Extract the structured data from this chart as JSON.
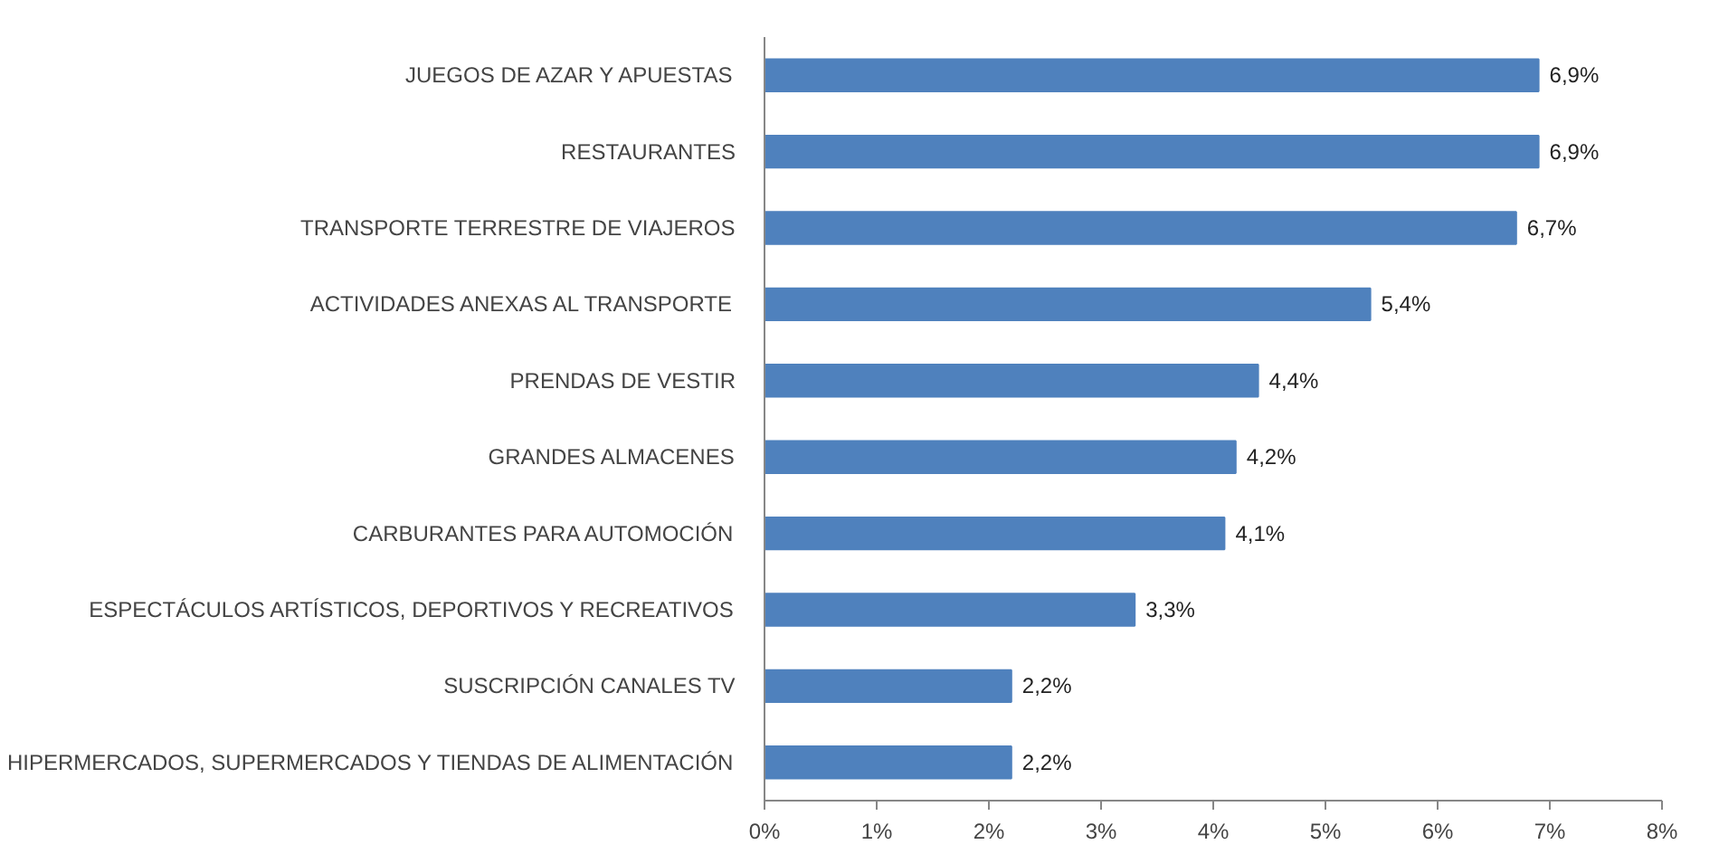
{
  "chart_data": {
    "type": "bar",
    "orientation": "horizontal",
    "categories": [
      "JUEGOS DE AZAR Y APUESTAS",
      "RESTAURANTES",
      "TRANSPORTE TERRESTRE DE VIAJEROS",
      "ACTIVIDADES ANEXAS AL TRANSPORTE",
      "PRENDAS DE VESTIR",
      "GRANDES ALMACENES",
      "CARBURANTES PARA AUTOMOCIÓN",
      "ESPECTÁCULOS ARTÍSTICOS, DEPORTIVOS Y RECREATIVOS",
      "SUSCRIPCIÓN CANALES TV",
      "HIPERMERCADOS, SUPERMERCADOS Y TIENDAS DE ALIMENTACIÓN"
    ],
    "values": [
      6.9,
      6.9,
      6.7,
      5.4,
      4.4,
      4.2,
      4.1,
      3.3,
      2.2,
      2.2
    ],
    "value_labels": [
      "6,9%",
      "6,9%",
      "6,7%",
      "5,4%",
      "4,4%",
      "4,2%",
      "4,1%",
      "3,3%",
      "2,2%",
      "2,2%"
    ],
    "color": "#4f81bd",
    "xlim": [
      0,
      8
    ],
    "xticks": [
      {
        "value": 0,
        "label": "0%"
      },
      {
        "value": 1,
        "label": "1%"
      },
      {
        "value": 2,
        "label": "2%"
      },
      {
        "value": 3,
        "label": "3%"
      },
      {
        "value": 4,
        "label": "4%"
      },
      {
        "value": 5,
        "label": "5%"
      },
      {
        "value": 6,
        "label": "6%"
      },
      {
        "value": 7,
        "label": "7%"
      },
      {
        "value": 8,
        "label": "8%"
      }
    ]
  }
}
